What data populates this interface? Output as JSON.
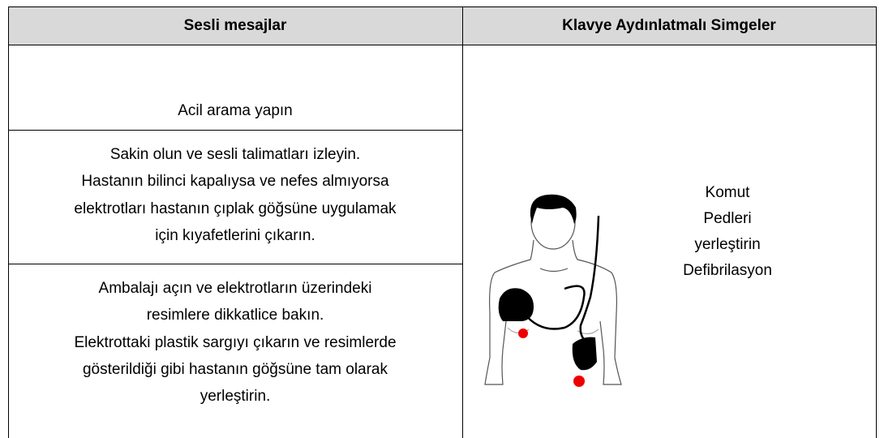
{
  "table": {
    "header": [
      "Sesli mesajlar",
      "Klavye Aydınlatmalı Simgeler"
    ],
    "rows": [
      {
        "lines": [
          "Acil arama yapın"
        ]
      },
      {
        "lines": [
          "Sakin olun ve sesli talimatları izleyin.",
          "Hastanın bilinci kapalıysa ve nefes almıyorsa",
          "elektrotları hastanın çıplak göğsüne uygulamak",
          "için kıyafetlerini çıkarın."
        ]
      },
      {
        "lines": [
          "Ambalajı açın ve elektrotların üzerindeki",
          "resimlere dikkatlice bakın.",
          "Elektrottaki plastik sargıyı çıkarın ve resimlerde",
          "gösterildiği gibi hastanın göğsüne tam olarak",
          "yerleştirin."
        ]
      }
    ],
    "icon_text": [
      "Komut",
      "Pedleri",
      "yerleştirin",
      "Defibrilasyon"
    ]
  }
}
